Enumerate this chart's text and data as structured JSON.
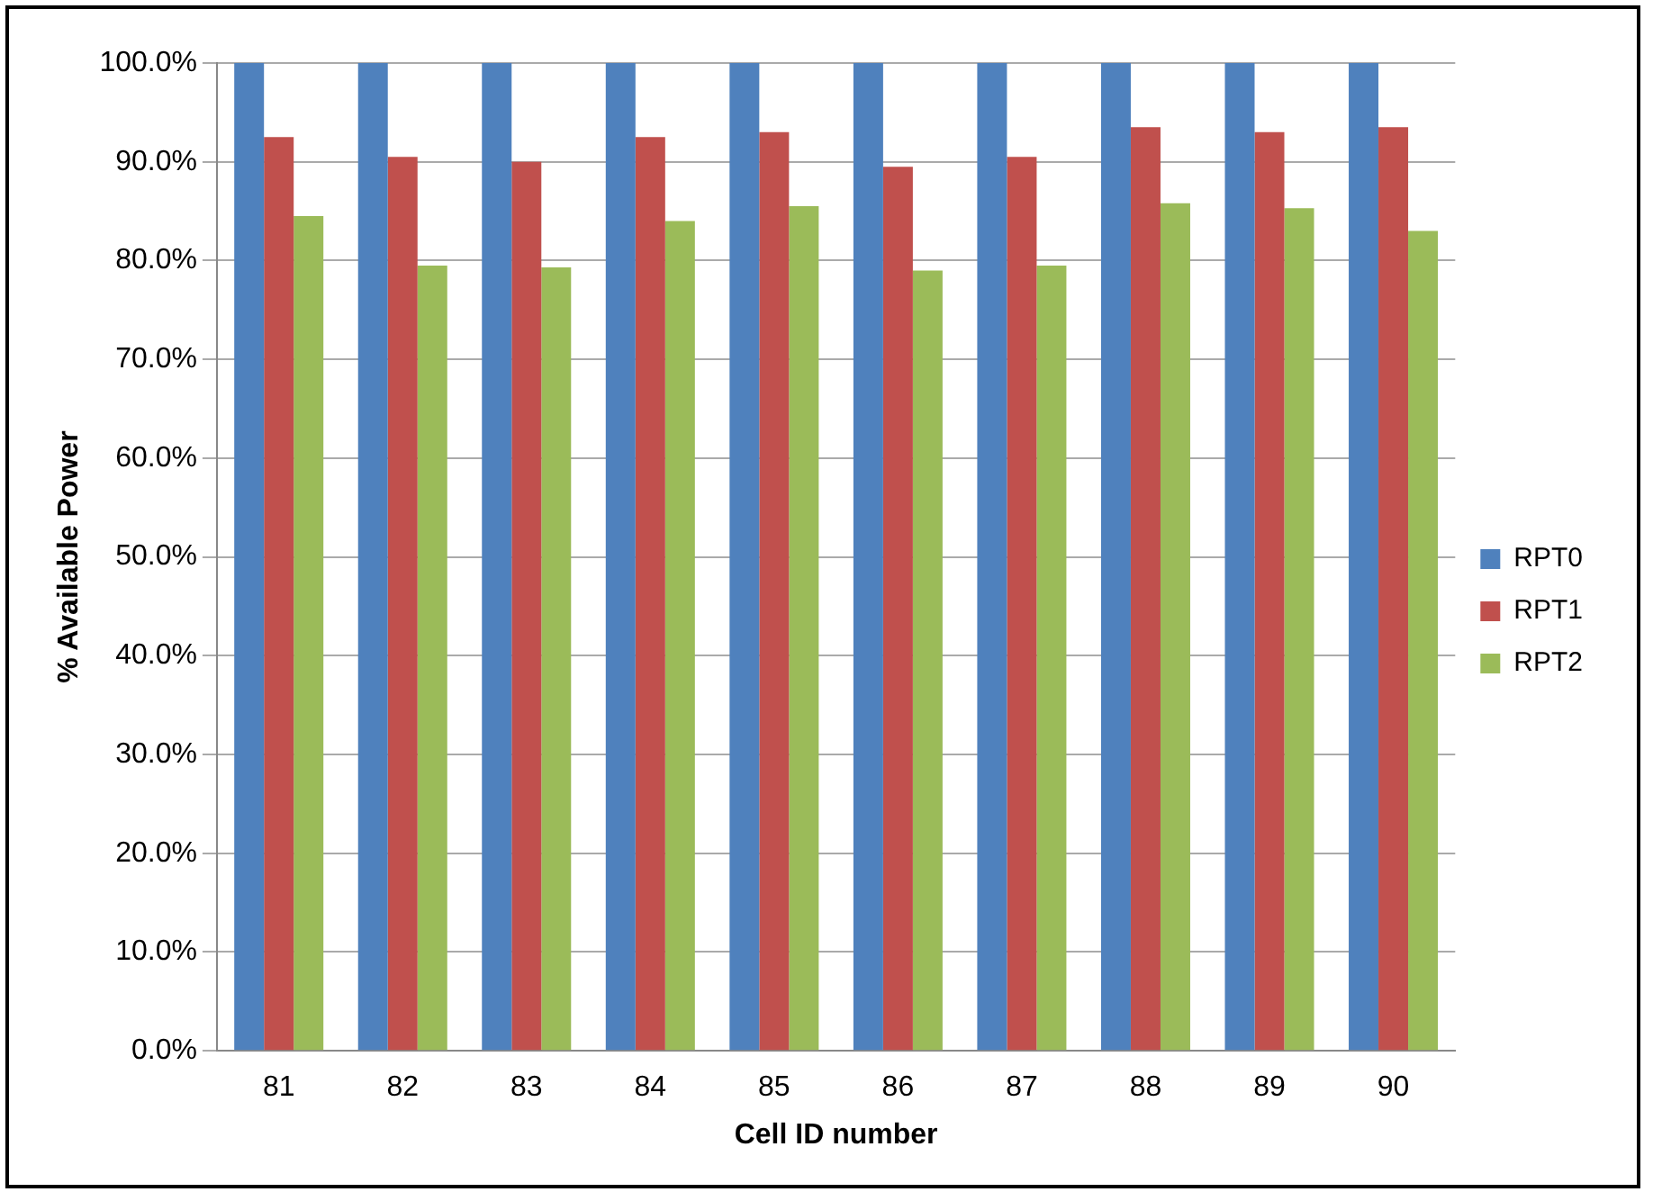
{
  "chart_data": {
    "type": "bar",
    "xlabel": "Cell ID number",
    "ylabel": "% Available Power",
    "categories": [
      "81",
      "82",
      "83",
      "84",
      "85",
      "86",
      "87",
      "88",
      "89",
      "90"
    ],
    "series": [
      {
        "name": "RPT0",
        "color": "#4f81bd",
        "values": [
          100,
          100,
          100,
          100,
          100,
          100,
          100,
          100,
          100,
          100
        ]
      },
      {
        "name": "RPT1",
        "color": "#c0504d",
        "values": [
          92.5,
          90.5,
          90,
          92.5,
          93,
          89.5,
          90.5,
          93.5,
          93,
          93.5
        ]
      },
      {
        "name": "RPT2",
        "color": "#9bbb59",
        "values": [
          84.5,
          79.5,
          79.3,
          84,
          85.5,
          79,
          79.5,
          85.8,
          85.3,
          83
        ]
      }
    ],
    "ylim": [
      0,
      100
    ],
    "yticks": [
      {
        "value": 0,
        "label": "0.0%"
      },
      {
        "value": 10,
        "label": "10.0%"
      },
      {
        "value": 20,
        "label": "20.0%"
      },
      {
        "value": 30,
        "label": "30.0%"
      },
      {
        "value": 40,
        "label": "40.0%"
      },
      {
        "value": 50,
        "label": "50.0%"
      },
      {
        "value": 60,
        "label": "60.0%"
      },
      {
        "value": 70,
        "label": "70.0%"
      },
      {
        "value": 80,
        "label": "80.0%"
      },
      {
        "value": 90,
        "label": "90.0%"
      },
      {
        "value": 100,
        "label": "100.0%"
      }
    ],
    "grid": "y",
    "legend": "right"
  }
}
